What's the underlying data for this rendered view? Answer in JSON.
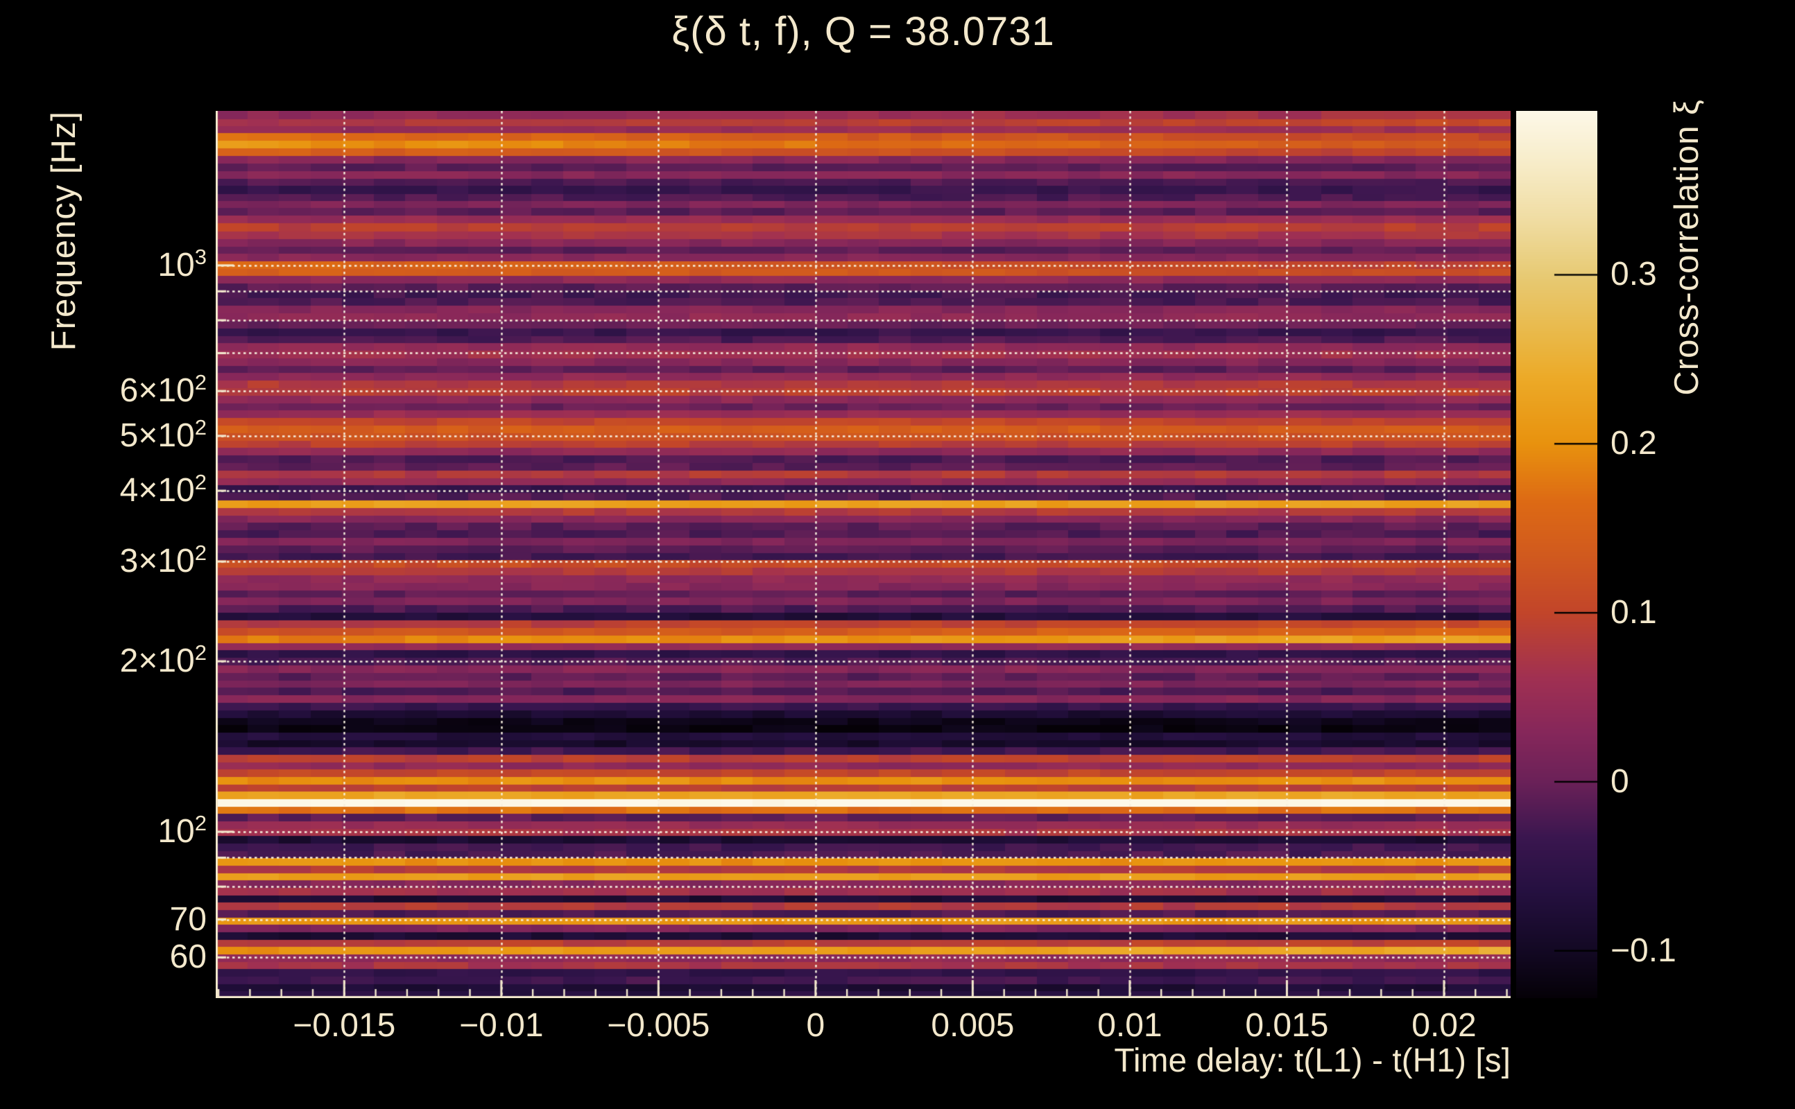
{
  "title": "ξ(δ t, f), Q = 38.0731",
  "colors": {
    "background": "#000000",
    "text": "#f3e8cc",
    "axis": "#f3e8cc",
    "grid": "#f7f0de",
    "colorbar_tick": "#000000"
  },
  "chart_data": {
    "type": "heatmap",
    "title": "ξ(δ t, f), Q = 38.0731",
    "q_value": 38.0731,
    "xlabel": "Time delay: t(L1) - t(H1) [s]",
    "ylabel": "Frequency [Hz]",
    "colorbar_label": "Cross-correlation ξ",
    "x_range": [
      -0.01909,
      0.02212
    ],
    "x_major_ticks": [
      -0.015,
      -0.01,
      -0.005,
      0,
      0.005,
      0.01,
      0.015,
      0.02
    ],
    "x_major_tick_labels": [
      "−0.015",
      "−0.01",
      "−0.005",
      "0",
      "0.005",
      "0.01",
      "0.015",
      "0.02"
    ],
    "x_minor_step": 0.001,
    "y_scale": "log",
    "y_range": [
      50.85,
      1874
    ],
    "y_tick_labels": [
      {
        "f": 1000,
        "base": "10",
        "exp": "3"
      },
      {
        "f": 600,
        "base": "6×10",
        "exp": "2"
      },
      {
        "f": 500,
        "base": "5×10",
        "exp": "2"
      },
      {
        "f": 400,
        "base": "4×10",
        "exp": "2"
      },
      {
        "f": 300,
        "base": "3×10",
        "exp": "2"
      },
      {
        "f": 200,
        "base": "2×10",
        "exp": "2"
      },
      {
        "f": 100,
        "base": "10",
        "exp": "2"
      },
      {
        "f": 70,
        "base": "70",
        "exp": ""
      },
      {
        "f": 60,
        "base": "60",
        "exp": ""
      }
    ],
    "y_grid_freqs": [
      1000,
      900,
      800,
      700,
      600,
      500,
      400,
      300,
      200,
      100,
      90,
      80,
      70,
      60
    ],
    "z_range": [
      -0.128,
      0.397
    ],
    "colorbar_ticks": [
      0.3,
      0.2,
      0.1,
      0,
      -0.1
    ],
    "colorbar_tick_labels": [
      "0.3",
      "0.2",
      "0.1",
      "0",
      "−0.1"
    ],
    "colormap_stops": [
      [
        0.0,
        "#050107"
      ],
      [
        0.05,
        "#120822"
      ],
      [
        0.12,
        "#251040"
      ],
      [
        0.18,
        "#3a164f"
      ],
      [
        0.244,
        "#6b2158"
      ],
      [
        0.3,
        "#86275a"
      ],
      [
        0.36,
        "#a03052"
      ],
      [
        0.434,
        "#c2452a"
      ],
      [
        0.5,
        "#d15a1e"
      ],
      [
        0.56,
        "#dd6a14"
      ],
      [
        0.625,
        "#e8920e"
      ],
      [
        0.7,
        "#ecaa28"
      ],
      [
        0.75,
        "#e9b94a"
      ],
      [
        0.815,
        "#e7ca74"
      ],
      [
        0.88,
        "#f0dda4"
      ],
      [
        0.94,
        "#f7ecc8"
      ],
      [
        1.0,
        "#fdf8e8"
      ]
    ],
    "n_time_bins": 41,
    "texture_amplitude": 0.013,
    "rows": [
      [
        0.0,
        0.04,
        0,
        0.03
      ],
      [
        0.0094,
        0.07,
        0,
        0.04
      ],
      [
        0.0172,
        0.04,
        0,
        0.02
      ],
      [
        0.025,
        0.09,
        0.08,
        0.01
      ],
      [
        0.0336,
        0.12,
        0.09,
        0.01
      ],
      [
        0.0422,
        0.08,
        0.07,
        0.01
      ],
      [
        0.0508,
        0.03
      ],
      [
        0.0594,
        -0.01
      ],
      [
        0.068,
        0.03
      ],
      [
        0.0766,
        -0.02
      ],
      [
        0.0844,
        -0.04
      ],
      [
        0.0938,
        -0.02
      ],
      [
        0.1016,
        0.02
      ],
      [
        0.1094,
        -0.01
      ],
      [
        0.118,
        0.05
      ],
      [
        0.1266,
        0.09
      ],
      [
        0.1359,
        0.07
      ],
      [
        0.1445,
        0.03
      ],
      [
        0.1531,
        -0.01
      ],
      [
        0.1609,
        0.03
      ],
      [
        0.1695,
        0.09,
        0.07,
        0
      ],
      [
        0.1781,
        0.11,
        0.04,
        0
      ],
      [
        0.1859,
        0.04
      ],
      [
        0.1945,
        -0.01
      ],
      [
        0.2031,
        -0.03
      ],
      [
        0.2109,
        -0.02
      ],
      [
        0.2195,
        0.03
      ],
      [
        0.2281,
        0.04
      ],
      [
        0.2367,
        0.0
      ],
      [
        0.2453,
        -0.04
      ],
      [
        0.2539,
        -0.02
      ],
      [
        0.2617,
        0.04
      ],
      [
        0.2703,
        0.06
      ],
      [
        0.2789,
        0.03
      ],
      [
        0.2875,
        -0.01
      ],
      [
        0.2953,
        0.04
      ],
      [
        0.3039,
        0.08
      ],
      [
        0.3125,
        0.09
      ],
      [
        0.3211,
        0.04
      ],
      [
        0.3297,
        0.0
      ],
      [
        0.3375,
        0.05
      ],
      [
        0.3461,
        0.1
      ],
      [
        0.3547,
        0.14
      ],
      [
        0.3633,
        0.12
      ],
      [
        0.3719,
        0.09
      ],
      [
        0.3797,
        0.04
      ],
      [
        0.3883,
        -0.02
      ],
      [
        0.3969,
        -0.01
      ],
      [
        0.4055,
        0.08
      ],
      [
        0.4141,
        0.04
      ],
      [
        0.4219,
        -0.04
      ],
      [
        0.4305,
        -0.02
      ],
      [
        0.4391,
        0.22
      ],
      [
        0.4477,
        0.08
      ],
      [
        0.4563,
        0.03
      ],
      [
        0.4641,
        -0.01
      ],
      [
        0.4727,
        -0.02
      ],
      [
        0.4813,
        0.02
      ],
      [
        0.4898,
        -0.01
      ],
      [
        0.4984,
        -0.03
      ],
      [
        0.5063,
        0.11
      ],
      [
        0.5148,
        0.08
      ],
      [
        0.5234,
        0.04
      ],
      [
        0.532,
        0.03
      ],
      [
        0.5406,
        -0.01
      ],
      [
        0.5484,
        0.02
      ],
      [
        0.557,
        -0.02
      ],
      [
        0.5656,
        -0.07
      ],
      [
        0.5742,
        0.08,
        0,
        0.03
      ],
      [
        0.5828,
        0.12,
        0,
        0.04
      ],
      [
        0.5914,
        0.18,
        0,
        0.05
      ],
      [
        0.6,
        0.04
      ],
      [
        0.6078,
        -0.05
      ],
      [
        0.6164,
        -0.02
      ],
      [
        0.625,
        0.03
      ],
      [
        0.6336,
        -0.01
      ],
      [
        0.6422,
        0.02
      ],
      [
        0.65,
        -0.02
      ],
      [
        0.6586,
        0.03
      ],
      [
        0.6672,
        -0.04
      ],
      [
        0.6758,
        -0.08
      ],
      [
        0.6844,
        -0.11
      ],
      [
        0.6922,
        -0.12
      ],
      [
        0.7008,
        -0.07
      ],
      [
        0.7094,
        -0.09
      ],
      [
        0.7172,
        -0.03
      ],
      [
        0.7258,
        0.09
      ],
      [
        0.7344,
        0.04
      ],
      [
        0.7422,
        0.1
      ],
      [
        0.7508,
        0.2
      ],
      [
        0.7594,
        0.09
      ],
      [
        0.7672,
        0.23
      ],
      [
        0.7758,
        0.4
      ],
      [
        0.7844,
        0.17
      ],
      [
        0.7922,
        -0.01
      ],
      [
        0.8008,
        0.05
      ],
      [
        0.8094,
        0.07
      ],
      [
        0.8172,
        -0.08
      ],
      [
        0.8258,
        -0.03
      ],
      [
        0.8344,
        -0.02
      ],
      [
        0.8422,
        0.2
      ],
      [
        0.8508,
        0.08
      ],
      [
        0.8594,
        0.22
      ],
      [
        0.8672,
        0.03
      ],
      [
        0.8758,
        0.06
      ],
      [
        0.8844,
        -0.08
      ],
      [
        0.8922,
        0.08
      ],
      [
        0.9008,
        -0.02
      ],
      [
        0.9094,
        0.21
      ],
      [
        0.9172,
        0.02
      ],
      [
        0.9258,
        -0.08
      ],
      [
        0.9344,
        0.09
      ],
      [
        0.9422,
        0.2,
        0,
        0.04
      ],
      [
        0.9508,
        0.04
      ],
      [
        0.9594,
        0.07
      ],
      [
        0.9672,
        -0.05
      ],
      [
        0.9758,
        -0.03
      ],
      [
        0.9844,
        -0.08
      ],
      [
        0.9922,
        -0.06
      ]
    ]
  }
}
